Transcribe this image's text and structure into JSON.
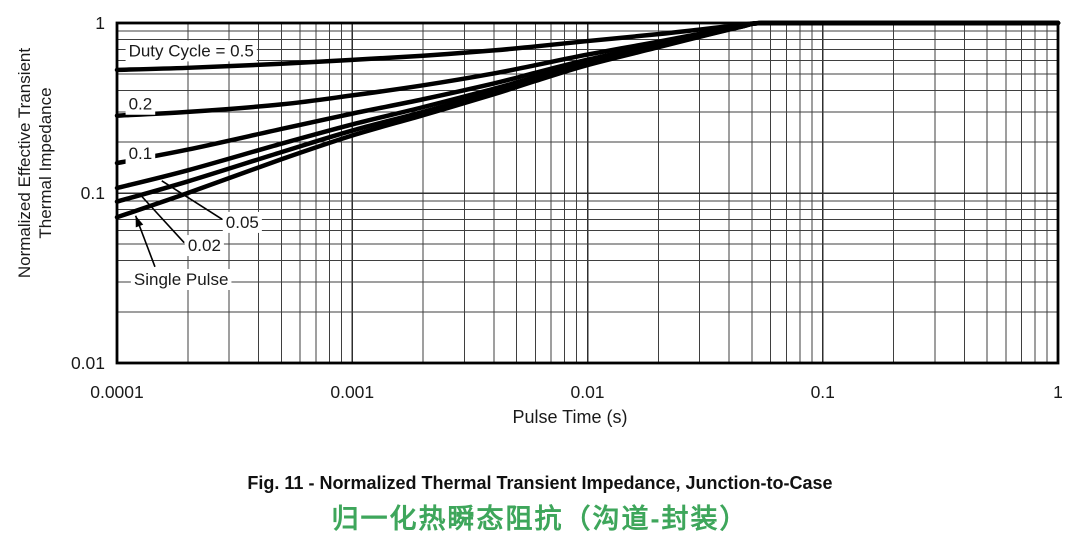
{
  "figure": {
    "caption_en": "Fig. 11 - Normalized Thermal Transient Impedance, Junction-to-Case",
    "caption_zh": "归一化热瞬态阻抗（沟道-封装）"
  },
  "colors": {
    "curve": "#000000",
    "frame": "#000000",
    "grid_minor": "#3f3f3f",
    "grid_major": "#2e2e2e",
    "text": "#1a1a1a",
    "caption_zh_green": "#3ea65b",
    "background": "#ffffff"
  },
  "chart_data": {
    "type": "line",
    "title": "",
    "xlabel": "Pulse Time (s)",
    "ylabel": "Normalized Effective Transient Thermal Impedance",
    "ylabel_line1": "Normalized Effective Transient",
    "ylabel_line2": "Thermal Impedance",
    "x_scale": "log",
    "y_scale": "log",
    "xlim": [
      0.0001,
      1
    ],
    "ylim": [
      0.01,
      1
    ],
    "grid": "log major and minor gridlines on, both axes",
    "legend_position": "in-plot text labels with leader lines",
    "x_tick_values": [
      0.0001,
      0.001,
      0.01,
      0.1,
      1
    ],
    "x_tick_labels": [
      "0.0001",
      "0.001",
      "0.01",
      "0.1",
      "1"
    ],
    "y_tick_values": [
      1,
      0.1,
      0.01
    ],
    "y_tick_labels": [
      "1",
      "0.1",
      "0.01"
    ],
    "t": [
      0.0001,
      0.0002,
      0.0005,
      0.001,
      0.002,
      0.004,
      0.006,
      0.01,
      0.02,
      0.03,
      0.045,
      0.055,
      0.1,
      0.3,
      1
    ],
    "series": [
      {
        "name": "Duty Cycle = 0.5",
        "duty": 0.5,
        "values": [
          0.53,
          0.545,
          0.576,
          0.607,
          0.642,
          0.69,
          0.728,
          0.783,
          0.86,
          0.915,
          0.975,
          1.0,
          1.0,
          1.0,
          1.0
        ]
      },
      {
        "name": "0.2",
        "duty": 0.2,
        "values": [
          0.285,
          0.3,
          0.332,
          0.375,
          0.43,
          0.505,
          0.565,
          0.652,
          0.776,
          0.864,
          0.96,
          1.0,
          1.0,
          1.0,
          1.0
        ]
      },
      {
        "name": "0.1",
        "duty": 0.1,
        "values": [
          0.15,
          0.18,
          0.238,
          0.293,
          0.356,
          0.441,
          0.509,
          0.608,
          0.748,
          0.847,
          0.955,
          1.0,
          1.0,
          1.0,
          1.0
        ]
      },
      {
        "name": "0.05",
        "duty": 0.05,
        "values": [
          0.107,
          0.136,
          0.195,
          0.253,
          0.32,
          0.41,
          0.481,
          0.586,
          0.734,
          0.839,
          0.953,
          1.0,
          1.0,
          1.0,
          1.0
        ]
      },
      {
        "name": "0.02",
        "duty": 0.02,
        "values": [
          0.089,
          0.117,
          0.174,
          0.233,
          0.3,
          0.393,
          0.467,
          0.575,
          0.726,
          0.833,
          0.951,
          1.0,
          1.0,
          1.0,
          1.0
        ]
      },
      {
        "name": "Single Pulse",
        "duty": "single",
        "values": [
          0.072,
          0.1,
          0.158,
          0.218,
          0.287,
          0.381,
          0.456,
          0.566,
          0.72,
          0.83,
          0.95,
          1.0,
          1.0,
          1.0,
          1.0
        ]
      }
    ],
    "annotations": [
      {
        "text": "Duty Cycle = 0.5",
        "t": 0.000112,
        "z": 0.69
      },
      {
        "text": "0.2",
        "t": 0.000112,
        "z": 0.335
      },
      {
        "text": "0.1",
        "t": 0.000112,
        "z": 0.172
      },
      {
        "text": "0.05",
        "t": 0.00029,
        "z": 0.0676,
        "leader": {
          "from_t": 0.00028,
          "from_z": 0.07,
          "to_t": 0.000155,
          "to_z": 0.118,
          "arrow": false
        }
      },
      {
        "text": "0.02",
        "t": 0.0002,
        "z": 0.0494,
        "leader": {
          "from_t": 0.000193,
          "from_z": 0.051,
          "to_t": 0.000127,
          "to_z": 0.096,
          "arrow": false
        }
      },
      {
        "text": "Single Pulse",
        "t": 0.000118,
        "z": 0.0312,
        "leader": {
          "from_t": 0.000145,
          "from_z": 0.0368,
          "to_t": 0.00012,
          "to_z": 0.0735,
          "arrow": true
        }
      }
    ]
  }
}
